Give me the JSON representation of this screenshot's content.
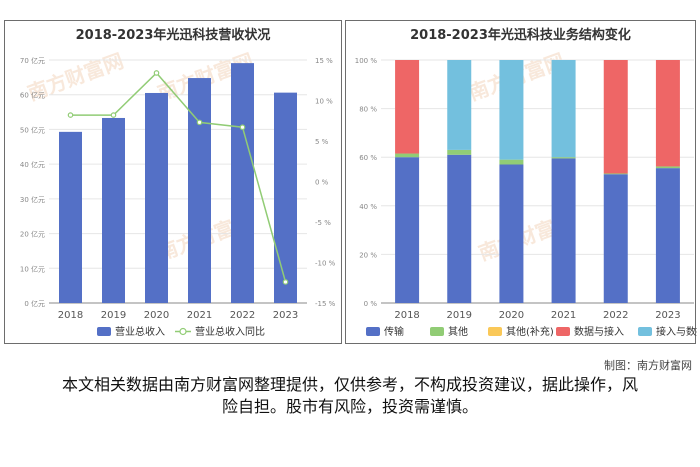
{
  "left_chart": {
    "title": "2018-2023年光迅科技营收状况",
    "legend": {
      "bar": "营业总收入",
      "line": "营业总收入同比"
    },
    "y_ticks_left": [
      "70 亿元",
      "60 亿元",
      "50 亿元",
      "40 亿元",
      "30 亿元",
      "20 亿元",
      "10 亿元",
      "0 亿元"
    ],
    "y_ticks_right": [
      "15 %",
      "10 %",
      "5 %",
      "0 %",
      "-5 %",
      "-10 %",
      "-15 %"
    ]
  },
  "right_chart": {
    "title": "2018-2023年光迅科技业务结构变化",
    "y_ticks": [
      "100 %",
      "80 %",
      "60 %",
      "40 %",
      "20 %",
      "0 %"
    ]
  },
  "watermark": {
    "text": "南方财富网"
  },
  "footer": {
    "credit": "制图：南方财富网",
    "disclaimer": "本文相关数据由南方财富网整理提供，仅供参考，不构成投资建议，据此操作，风险自担。股市有风险，投资需谨慎。"
  },
  "colors": {
    "bar": "#5470c6",
    "line": "#91cc75",
    "transmission": "#5470c6",
    "other": "#91cc75",
    "other_supplement": "#fac858",
    "data_access": "#ee6666",
    "access_data": "#73c0de"
  },
  "chart_data": [
    {
      "type": "bar",
      "categories": [
        "2018",
        "2019",
        "2020",
        "2021",
        "2022",
        "2023"
      ],
      "series": [
        {
          "name": "营业总收入",
          "type": "bar",
          "axis": "left",
          "values": [
            49.3,
            53.3,
            60.5,
            64.8,
            69.1,
            60.6
          ]
        },
        {
          "name": "营业总收入同比",
          "type": "line",
          "axis": "right",
          "values": [
            8.2,
            8.2,
            13.4,
            7.3,
            6.7,
            -12.4
          ]
        }
      ],
      "ylim_left": [
        0,
        70
      ],
      "ylim_right": [
        -15,
        15
      ],
      "grid": true,
      "legend_position": "bottom"
    },
    {
      "type": "bar",
      "stacked": true,
      "categories": [
        "2018",
        "2019",
        "2020",
        "2021",
        "2022",
        "2023"
      ],
      "series": [
        {
          "name": "传输",
          "values": [
            60,
            61,
            57,
            59.5,
            53,
            55.5
          ]
        },
        {
          "name": "其他",
          "values": [
            1.5,
            2,
            2,
            0.5,
            0.3,
            0.7
          ]
        },
        {
          "name": "其他(补充)",
          "values": [
            0,
            0,
            0,
            0,
            0,
            0
          ]
        },
        {
          "name": "数据与接入",
          "values": [
            38.5,
            0,
            0,
            0,
            46.7,
            43.8
          ]
        },
        {
          "name": "接入与数据",
          "values": [
            0,
            37,
            41,
            40,
            0,
            0
          ]
        }
      ],
      "ylim": [
        0,
        100
      ],
      "grid": true,
      "legend_position": "bottom"
    }
  ]
}
